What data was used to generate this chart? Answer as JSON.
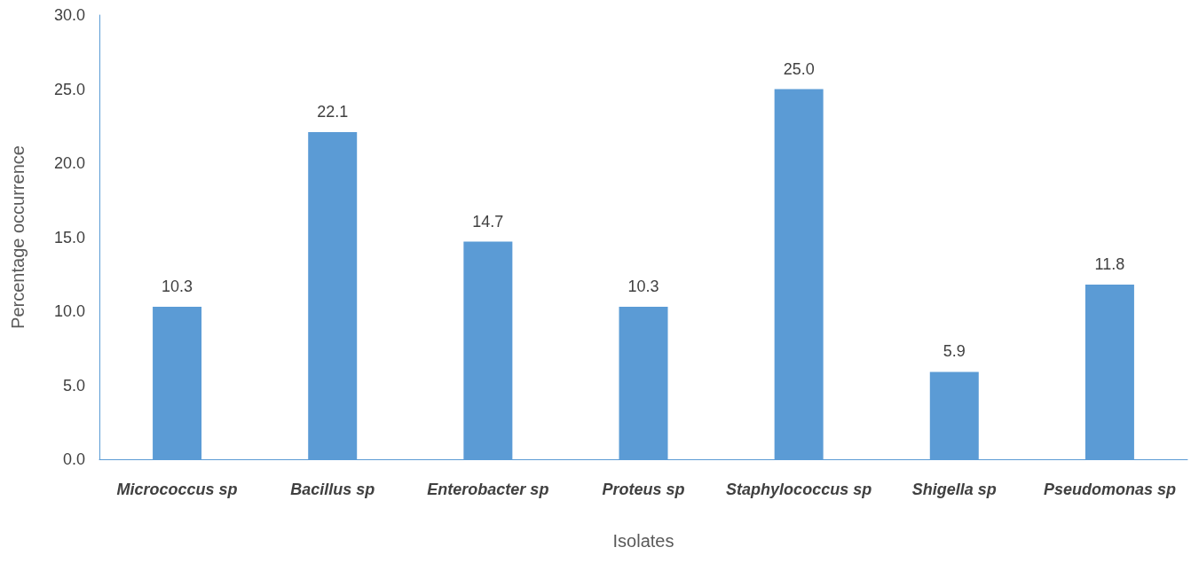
{
  "chart_data": {
    "type": "bar",
    "xlabel": "Isolates",
    "ylabel": "Percentage occurrence",
    "categories": [
      "Micrococcus sp",
      "Bacillus sp",
      "Enterobacter sp",
      "Proteus sp",
      "Staphylococcus sp",
      "Shigella sp",
      "Pseudomonas sp"
    ],
    "values": [
      10.3,
      22.1,
      14.7,
      10.3,
      25.0,
      5.9,
      11.8
    ],
    "value_labels": [
      "10.3",
      "22.1",
      "14.7",
      "10.3",
      "25.0",
      "5.9",
      "11.8"
    ],
    "color": "#5b9bd5",
    "ylim": [
      0,
      30
    ],
    "yticks": [
      {
        "value": 0,
        "label": "0.0"
      },
      {
        "value": 5,
        "label": "5.0"
      },
      {
        "value": 10,
        "label": "10.0"
      },
      {
        "value": 15,
        "label": "15.0"
      },
      {
        "value": 20,
        "label": "20.0"
      },
      {
        "value": 25,
        "label": "25.0"
      },
      {
        "value": 30,
        "label": "30.0"
      }
    ],
    "grid": false
  }
}
